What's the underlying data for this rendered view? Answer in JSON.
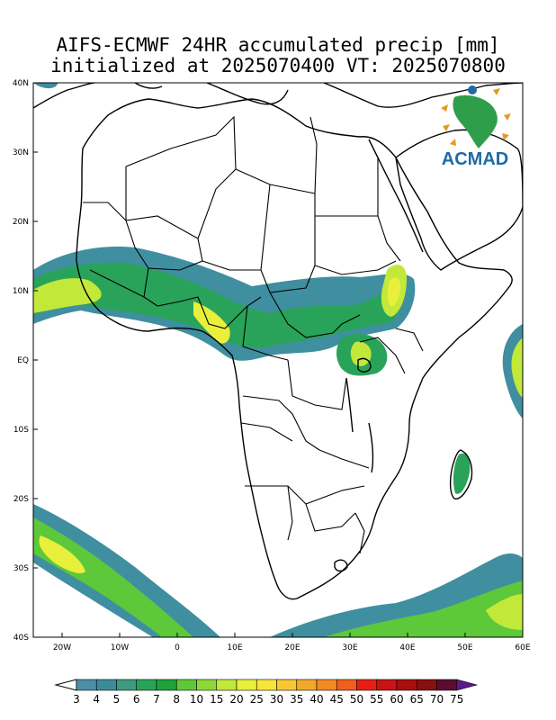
{
  "title": {
    "line1": "AIFS-ECMWF 24HR accumulated precip [mm]",
    "line2": "initialized at 2025070400 VT: 2025070800"
  },
  "logo": {
    "text": "ACMAD",
    "icon": "africa-map-logo"
  },
  "axes": {
    "lat_labels": [
      "40N",
      "30N",
      "20N",
      "10N",
      "EQ",
      "10S",
      "20S",
      "30S",
      "40S"
    ],
    "lon_labels": [
      "20W",
      "10W",
      "0",
      "10E",
      "20E",
      "30E",
      "40E",
      "50E",
      "60E"
    ],
    "lon_range": [
      -25,
      60
    ],
    "lat_range": [
      -40,
      40
    ]
  },
  "colorbar": {
    "labels": [
      "3",
      "4",
      "5",
      "6",
      "7",
      "8",
      "10",
      "15",
      "20",
      "25",
      "30",
      "35",
      "40",
      "45",
      "50",
      "55",
      "60",
      "65",
      "70",
      "75"
    ],
    "colors": [
      "#4a8ea8",
      "#3b8c98",
      "#3c9c7e",
      "#2aa35a",
      "#1ea23a",
      "#5cc83a",
      "#8ed83a",
      "#c2e83a",
      "#e8f03c",
      "#f8e53a",
      "#f8c832",
      "#f4a82a",
      "#f48a22",
      "#f0601c",
      "#e81e14",
      "#c81414",
      "#a81010",
      "#881010",
      "#5c0c30",
      "#5c1a8c"
    ]
  }
}
